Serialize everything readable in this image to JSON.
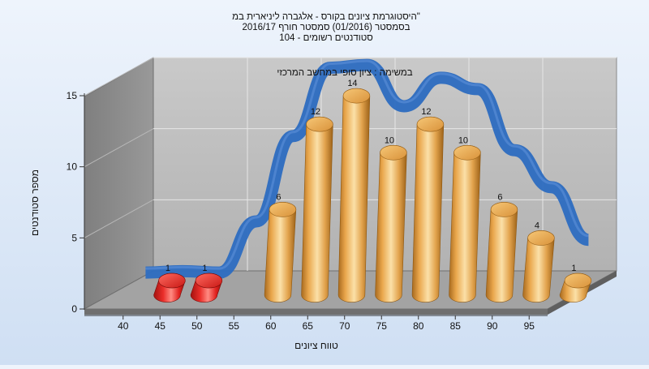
{
  "chart_data": {
    "type": "bar",
    "title_lines": [
      "היסטוגרמת ציונים בקורס - אלגברה ליניארית במ\"",
      "בסמסטר  (01/2016)  סמסטר חורף 2016/17",
      "סטודנטים רשומים - 104"
    ],
    "subtitle": "במשימה : ציון סופי במחשב המרכזי",
    "xlabel": "טווח ציונים",
    "ylabel": "מספר סטודנטים",
    "categories": [
      "40",
      "45",
      "50",
      "55",
      "60",
      "65",
      "70",
      "75",
      "80",
      "85",
      "90",
      "95"
    ],
    "values": [
      1,
      1,
      null,
      6,
      12,
      14,
      10,
      12,
      10,
      6,
      4,
      1
    ],
    "bar_colors": [
      "#e8302b",
      "#e8302b",
      null,
      "#e3a64a",
      "#e3a64a",
      "#e3a64a",
      "#e3a64a",
      "#e3a64a",
      "#e3a64a",
      "#e3a64a",
      "#e3a64a",
      "#e3a64a"
    ],
    "curve_color": "#2f6dc0",
    "ylim": [
      0,
      15
    ],
    "yticks": [
      0,
      5,
      10,
      15
    ],
    "grid": true,
    "data_labels": true
  }
}
